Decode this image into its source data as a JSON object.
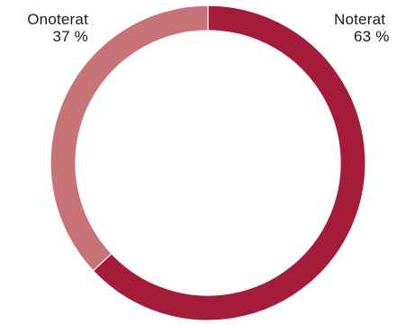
{
  "chart_data": {
    "type": "pie",
    "variant": "donut",
    "series": [
      {
        "name": "Noterat",
        "value": 63,
        "value_label": "63 %",
        "color": "#a51c3a"
      },
      {
        "name": "Onoterat",
        "value": 37,
        "value_label": "37 %",
        "color": "#c87377"
      }
    ],
    "start": "12 o'clock, clockwise",
    "legend": "none"
  }
}
